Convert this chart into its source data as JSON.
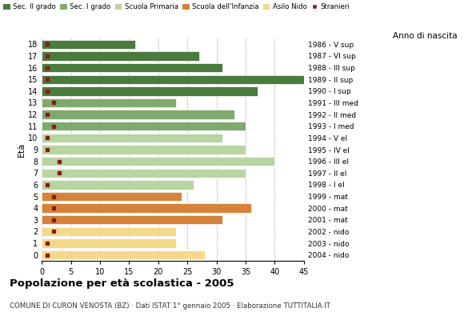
{
  "ages": [
    0,
    1,
    2,
    3,
    4,
    5,
    6,
    7,
    8,
    9,
    10,
    11,
    12,
    13,
    14,
    15,
    16,
    17,
    18
  ],
  "values": [
    28,
    23,
    23,
    31,
    36,
    24,
    26,
    35,
    40,
    35,
    31,
    35,
    33,
    23,
    37,
    45,
    31,
    27,
    16
  ],
  "stranieri": [
    1,
    1,
    2,
    2,
    2,
    2,
    1,
    3,
    3,
    1,
    1,
    2,
    1,
    2,
    1,
    1,
    1,
    1,
    1
  ],
  "bar_colors": [
    "#f5d98b",
    "#f5d98b",
    "#f5d98b",
    "#d4833a",
    "#d4833a",
    "#d4833a",
    "#b8d4a0",
    "#b8d4a0",
    "#b8d4a0",
    "#b8d4a0",
    "#b8d4a0",
    "#7faa6e",
    "#7faa6e",
    "#7faa6e",
    "#4a7a3d",
    "#4a7a3d",
    "#4a7a3d",
    "#4a7a3d",
    "#4a7a3d"
  ],
  "right_labels": [
    "2004 - nido",
    "2003 - nido",
    "2002 - nido",
    "2001 - mat",
    "2000 - mat",
    "1999 - mat",
    "1998 - I el",
    "1997 - II el",
    "1996 - III el",
    "1995 - IV el",
    "1994 - V el",
    "1993 - I med",
    "1992 - II med",
    "1991 - III med",
    "1990 - I sup",
    "1989 - II sup",
    "1988 - III sup",
    "1987 - VI sup",
    "1986 - V sup"
  ],
  "legend_labels": [
    "Sec. II grado",
    "Sec. I grado",
    "Scuola Primaria",
    "Scuola dell'Infanzia",
    "Asilo Nido",
    "Stranieri"
  ],
  "legend_colors": [
    "#4a7a3d",
    "#7faa6e",
    "#b8d4a0",
    "#d4833a",
    "#f5d98b",
    "#8b1a1a"
  ],
  "stranieri_color": "#8b1a1a",
  "title": "Popolazione per età scolastica - 2005",
  "subtitle": "COMUNE DI CURON VENOSTA (BZ) · Dati ISTAT 1° gennaio 2005 · Elaborazione TUTTITALIA.IT",
  "ylabel": "Età",
  "right_axis_label": "Anno di nascita",
  "xlim": [
    0,
    45
  ],
  "xticks": [
    0,
    5,
    10,
    15,
    20,
    25,
    30,
    35,
    40,
    45
  ],
  "background_color": "#ffffff",
  "grid_color": "#aaaaaa"
}
